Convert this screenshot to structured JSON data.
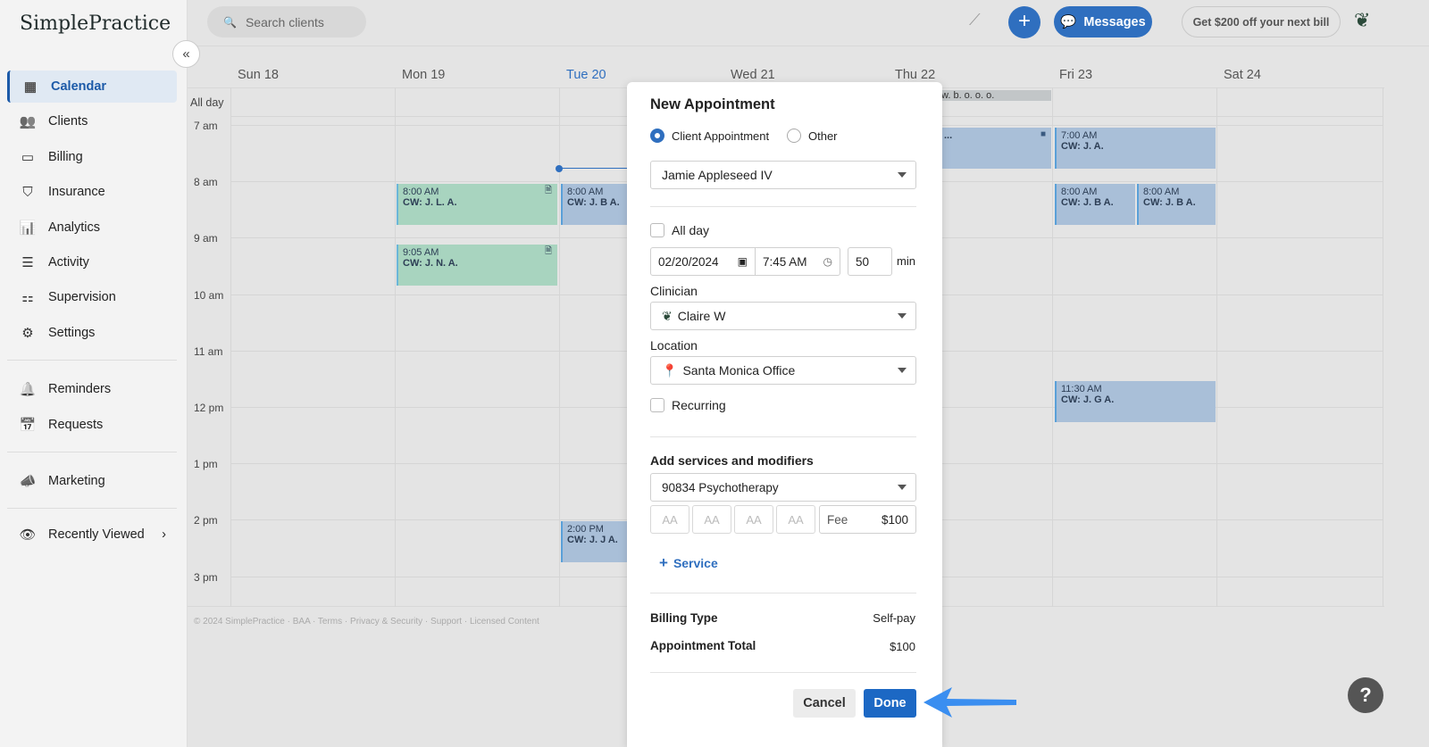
{
  "app": {
    "logo": "SimplePractice"
  },
  "sidebar": {
    "items": [
      {
        "label": "Calendar",
        "icon": "calendar-icon",
        "glyph": "▦"
      },
      {
        "label": "Clients",
        "icon": "users-icon",
        "glyph": "👥"
      },
      {
        "label": "Billing",
        "icon": "credit-card-icon",
        "glyph": "▭"
      },
      {
        "label": "Insurance",
        "icon": "shield-icon",
        "glyph": "⛉"
      },
      {
        "label": "Analytics",
        "icon": "bar-chart-icon",
        "glyph": "📊"
      },
      {
        "label": "Activity",
        "icon": "list-icon",
        "glyph": "☰"
      },
      {
        "label": "Supervision",
        "icon": "supervision-icon",
        "glyph": "⚏"
      },
      {
        "label": "Settings",
        "icon": "gear-icon",
        "glyph": "⚙"
      },
      {
        "label": "Reminders",
        "icon": "bell-icon",
        "glyph": "🔔"
      },
      {
        "label": "Requests",
        "icon": "calendar-plus-icon",
        "glyph": "📅"
      },
      {
        "label": "Marketing",
        "icon": "megaphone-icon",
        "glyph": "📣"
      },
      {
        "label": "Recently Viewed",
        "icon": "eye-icon",
        "glyph": "👁"
      }
    ]
  },
  "topbar": {
    "search_placeholder": "Search clients",
    "messages": "Messages",
    "promo": "Get $200 off your next bill"
  },
  "calendar": {
    "days": [
      "Sun 18",
      "Mon 19",
      "Tue 20",
      "Wed 21",
      "Thu 22",
      "Fri 23",
      "Sat 24"
    ],
    "today": "Tue 20",
    "all_day_label": "All day",
    "times": [
      "7 am",
      "8 am",
      "9 am",
      "10 am",
      "11 am",
      "12 pm",
      "1 pm",
      "2 pm",
      "3 pm"
    ],
    "all_day_event": "w. b. o. o. o.",
    "events": [
      {
        "time": "8:00 AM",
        "title": "CW: J. L. A."
      },
      {
        "time": "9:05 AM",
        "title": "CW: J. N. A."
      },
      {
        "time": "8:00 AM",
        "title": "CW: J. B A."
      },
      {
        "time": "2:00 PM",
        "title": "CW: J. J A."
      },
      {
        "time": "",
        "title": "..."
      },
      {
        "time": "7:00 AM",
        "title": "CW: J. A."
      },
      {
        "time": "8:00 AM",
        "title": "CW: J. B A."
      },
      {
        "time": "8:00 AM",
        "title": "CW: J. B A."
      },
      {
        "time": "11:30 AM",
        "title": "CW: J. G A."
      }
    ],
    "footer": "© 2024 SimplePractice · BAA · Terms · Privacy & Security · Support · Licensed Content"
  },
  "modal": {
    "title": "New Appointment",
    "type_options": [
      "Client Appointment",
      "Other"
    ],
    "client": "Jamie Appleseed IV",
    "all_day": "All day",
    "date": "02/20/2024",
    "time": "7:45 AM",
    "duration": "50",
    "duration_unit": "min",
    "clinician_label": "Clinician",
    "clinician": "Claire W",
    "location_label": "Location",
    "location": "Santa Monica Office",
    "recurring": "Recurring",
    "services_label": "Add services and modifiers",
    "service": "90834 Psychotherapy",
    "modifiers": [
      "AA",
      "AA",
      "AA",
      "AA"
    ],
    "fee_label": "Fee",
    "fee": "$100",
    "add_service": "Service",
    "billing_type_label": "Billing Type",
    "billing_type": "Self-pay",
    "total_label": "Appointment Total",
    "total": "$100",
    "cancel": "Cancel",
    "done": "Done"
  },
  "colors": {
    "accent": "#2f6fbf",
    "done": "#1c68c4",
    "arrow": "#3a8ef0"
  }
}
